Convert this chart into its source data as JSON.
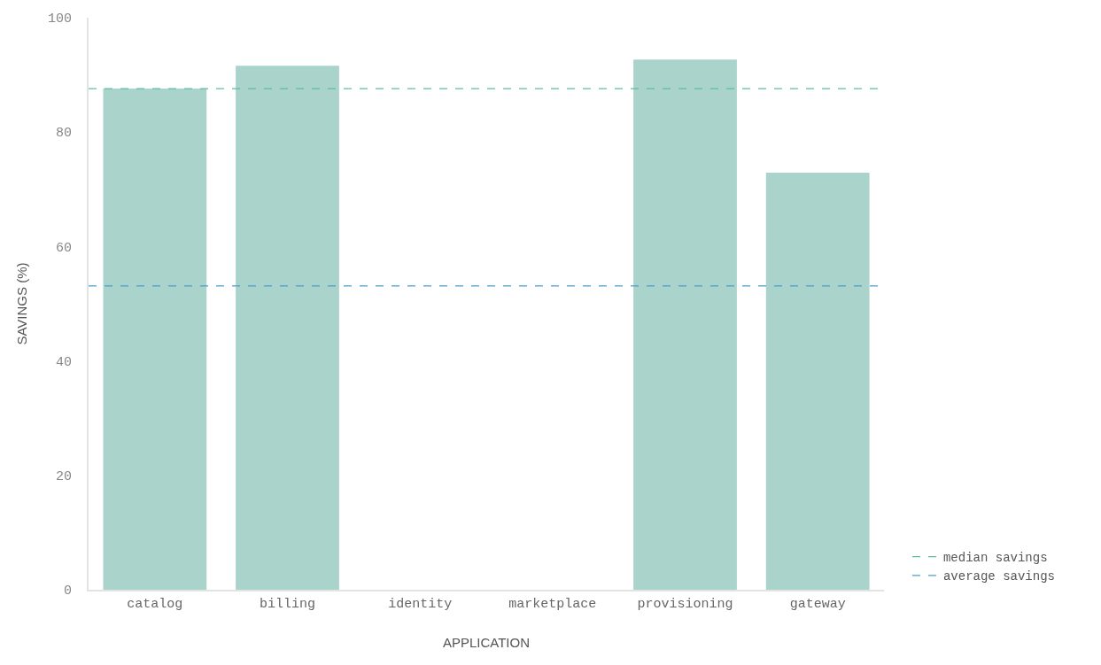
{
  "chart_data": {
    "type": "bar",
    "xlabel": "APPLICATION",
    "ylabel": "SAVINGS (%)",
    "categories": [
      "catalog",
      "billing",
      "identity",
      "marketplace",
      "provisioning",
      "gateway"
    ],
    "values": [
      87.6,
      91.6,
      0,
      0,
      92.7,
      72.9
    ],
    "color": "#a9d3cb",
    "ylim": [
      0,
      100
    ],
    "yticks": [
      0,
      20,
      40,
      60,
      80,
      100
    ],
    "grid": false,
    "legend": "bottom right",
    "ref_lines": [
      {
        "axis": "y",
        "value": 87.6,
        "label": "median savings",
        "color": "#5cbfa0",
        "line_style": "dashed"
      },
      {
        "axis": "y",
        "value": 53.1,
        "label": "average savings",
        "color": "#4a9fd0",
        "line_style": "dashed"
      }
    ]
  }
}
